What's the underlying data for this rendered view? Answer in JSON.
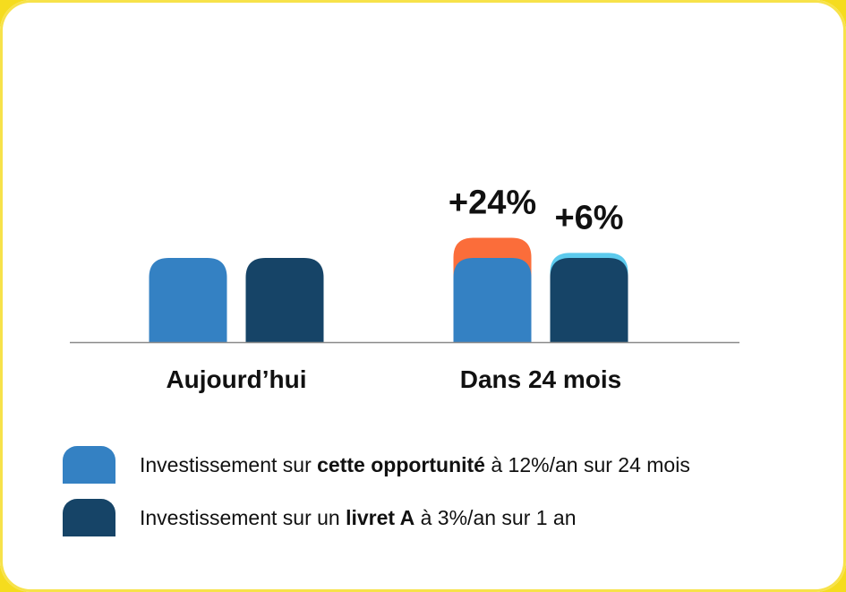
{
  "colors": {
    "opportunity": "#3481c3",
    "livret": "#164467",
    "opportunity_gain": "#fb6d3a",
    "livret_gain": "#5ccaed",
    "axis": "#8a8a8a",
    "text": "#111111"
  },
  "chart_data": {
    "type": "bar",
    "stacked": true,
    "categories": [
      "Aujourd’hui",
      "Dans 24 mois"
    ],
    "series": [
      {
        "name": "Investissement sur cette opportunité à 12%/an sur 24 mois",
        "base": [
          100,
          100
        ],
        "gain": [
          0,
          24
        ]
      },
      {
        "name": "Investissement sur un livret A à 3%/an sur 1 an",
        "base": [
          100,
          100
        ],
        "gain": [
          0,
          6
        ]
      }
    ],
    "data_labels": [
      {
        "category": "Dans 24 mois",
        "series": 0,
        "text": "+24%"
      },
      {
        "category": "Dans 24 mois",
        "series": 1,
        "text": "+6%"
      }
    ],
    "grid": false
  },
  "legend": {
    "items": [
      {
        "prefix": "Investissement sur ",
        "bold": "cette opportunité",
        "suffix": " à 12%/an sur 24 mois"
      },
      {
        "prefix": "Investissement sur un ",
        "bold": "livret A",
        "suffix": " à 3%/an sur 1 an"
      }
    ]
  }
}
